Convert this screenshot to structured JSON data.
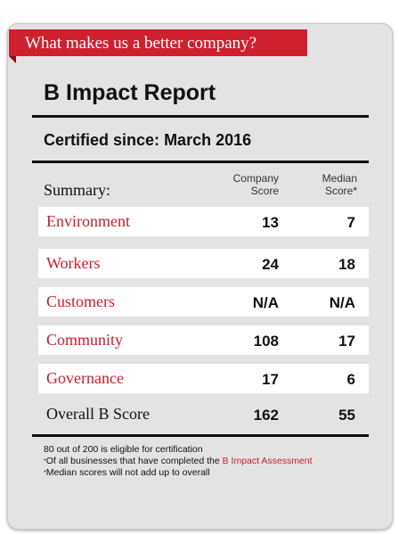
{
  "banner": {
    "text": "What makes us a better company?"
  },
  "report": {
    "title": "B Impact Report",
    "certified_label": "Certified since:",
    "certified_date": "March 2016"
  },
  "table": {
    "summary_label": "Summary:",
    "col1_line1": "Company",
    "col1_line2": "Score",
    "col2_line1": "Median",
    "col2_line2": "Score*",
    "rows": [
      {
        "label": "Environment",
        "company": "13",
        "median": "7"
      },
      {
        "label": "Workers",
        "company": "24",
        "median": "18"
      },
      {
        "label": "Customers",
        "company": "N/A",
        "median": "N/A"
      },
      {
        "label": "Community",
        "company": "108",
        "median": "17"
      },
      {
        "label": "Governance",
        "company": "17",
        "median": "6"
      }
    ],
    "overall": {
      "label": "Overall B Score",
      "company": "162",
      "median": "55"
    }
  },
  "footnotes": {
    "eligibility": "80 out of 200 is eligible for certification",
    "note1_prefix": "Of all businesses that have completed the ",
    "note1_link": "B Impact Assessment",
    "note2": "Median scores will not add up to overall"
  },
  "colors": {
    "accent_red": "#d0202e",
    "card_bg": "#e3e3e3"
  }
}
